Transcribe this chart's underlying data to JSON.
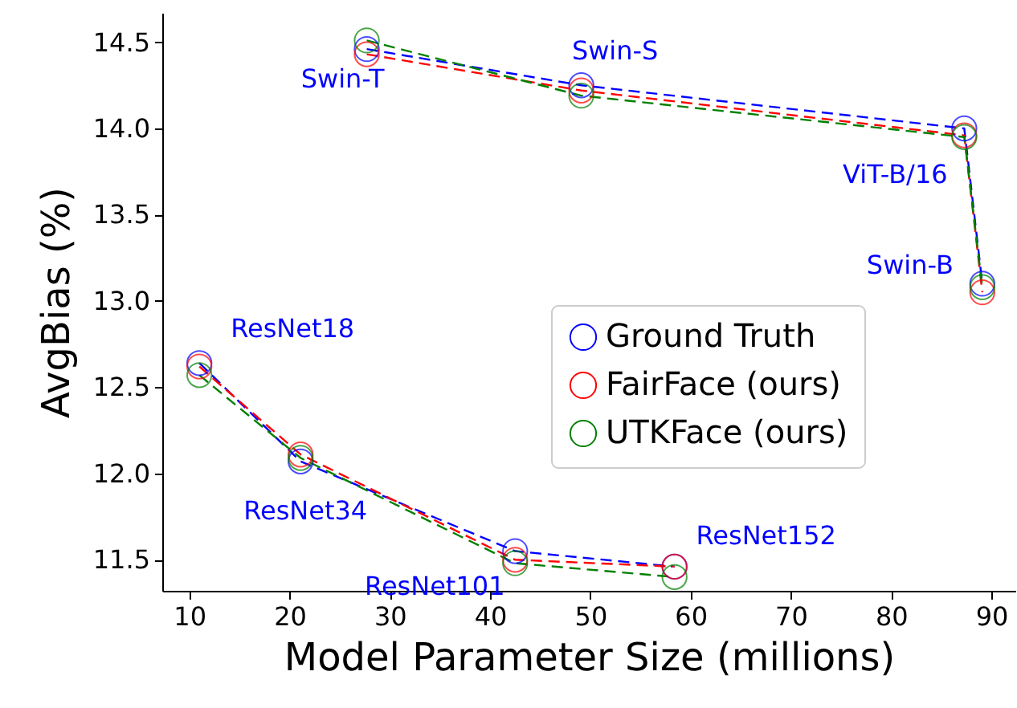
{
  "chart_data": {
    "type": "line",
    "xlabel": "Model Parameter Size (millions)",
    "ylabel": "AvgBias (%)",
    "x": [
      11.0,
      21.1,
      42.5,
      58.4,
      null,
      27.7,
      49.1,
      87.3,
      89.1
    ],
    "series": [
      {
        "name": "Ground Truth",
        "color": "#0000ff",
        "values": [
          12.64,
          12.07,
          11.55,
          11.46,
          null,
          14.46,
          14.25,
          14.0,
          13.1
        ]
      },
      {
        "name": "FairFace (ours)",
        "color": "#ff0000",
        "values": [
          12.62,
          12.11,
          11.5,
          11.46,
          null,
          14.43,
          14.22,
          13.96,
          13.05
        ]
      },
      {
        "name": "UTKFace (ours)",
        "color": "#008000",
        "values": [
          12.57,
          12.09,
          11.48,
          11.4,
          null,
          14.51,
          14.19,
          13.95,
          13.08
        ]
      }
    ],
    "xlim": [
      7.3,
      92.4
    ],
    "xticks": [
      10,
      20,
      30,
      40,
      50,
      60,
      70,
      80,
      90
    ],
    "ylim": [
      11.32,
      14.67
    ],
    "yticks": [
      11.5,
      {
        "value": 12,
        "label": "12.0"
      },
      12.5,
      {
        "value": 13,
        "label": "13.0"
      },
      13.5,
      {
        "value": 14,
        "label": "14.0"
      },
      14.5
    ],
    "annotations": [
      {
        "text": "ResNet18",
        "x": 11.0,
        "y": 12.64
      },
      {
        "text": "ResNet34",
        "x": 21.1,
        "y": 12.07
      },
      {
        "text": "ResNet101",
        "x": 42.5,
        "y": 11.55
      },
      {
        "text": "ResNet152",
        "x": 58.4,
        "y": 11.46
      },
      {
        "text": "Swin-T",
        "x": 27.7,
        "y": 14.46
      },
      {
        "text": "Swin-S",
        "x": 49.1,
        "y": 14.25
      },
      {
        "text": "ViT-B/16",
        "x": 87.3,
        "y": 14.0
      },
      {
        "text": "Swin-B",
        "x": 89.1,
        "y": 13.1
      }
    ],
    "legend": "bottom right",
    "grid": false,
    "marker": "circle",
    "line_style": "dashed"
  }
}
